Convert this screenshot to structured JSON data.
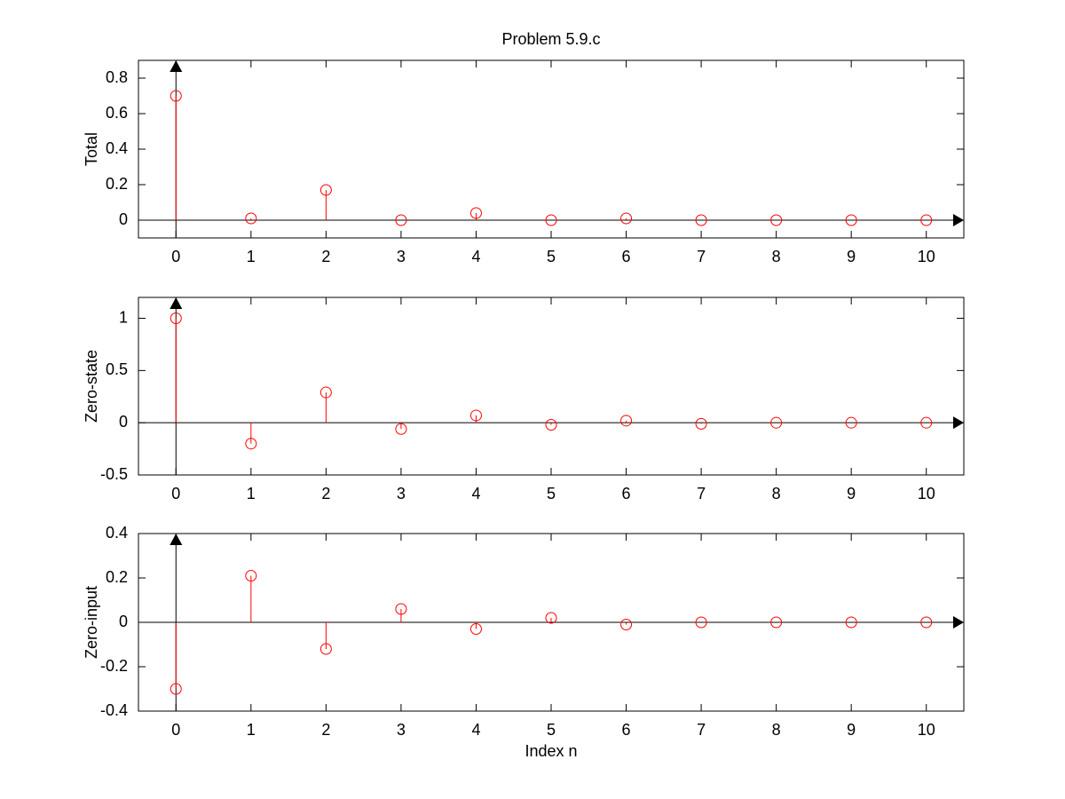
{
  "chart_data": [
    {
      "type": "stem",
      "title": "Problem 5.9.c",
      "ylabel": "Total",
      "color": "#ff0000",
      "x": [
        0,
        1,
        2,
        3,
        4,
        5,
        6,
        7,
        8,
        9,
        10
      ],
      "values": [
        0.7,
        0.01,
        0.17,
        0,
        0.04,
        0,
        0.01,
        0,
        0,
        0,
        0
      ],
      "xlim": [
        -0.5,
        10.5
      ],
      "xticks": [
        0,
        1,
        2,
        3,
        4,
        5,
        6,
        7,
        8,
        9,
        10
      ],
      "ylim": [
        -0.1,
        0.9
      ],
      "yticks": [
        0,
        0.2,
        0.4,
        0.6,
        0.8
      ]
    },
    {
      "type": "stem",
      "ylabel": "Zero-state",
      "color": "#ff0000",
      "x": [
        0,
        1,
        2,
        3,
        4,
        5,
        6,
        7,
        8,
        9,
        10
      ],
      "values": [
        1,
        -0.2,
        0.29,
        -0.06,
        0.07,
        -0.02,
        0.02,
        -0.01,
        0,
        0,
        0
      ],
      "xlim": [
        -0.5,
        10.5
      ],
      "xticks": [
        0,
        1,
        2,
        3,
        4,
        5,
        6,
        7,
        8,
        9,
        10
      ],
      "ylim": [
        -0.5,
        1.2
      ],
      "yticks": [
        -0.5,
        0,
        0.5,
        1
      ]
    },
    {
      "type": "stem",
      "ylabel": "Zero-input",
      "xlabel": "Index n",
      "color": "#ff0000",
      "x": [
        0,
        1,
        2,
        3,
        4,
        5,
        6,
        7,
        8,
        9,
        10
      ],
      "values": [
        -0.3,
        0.21,
        -0.12,
        0.06,
        -0.03,
        0.02,
        -0.01,
        0,
        0,
        0,
        0
      ],
      "xlim": [
        -0.5,
        10.5
      ],
      "xticks": [
        0,
        1,
        2,
        3,
        4,
        5,
        6,
        7,
        8,
        9,
        10
      ],
      "ylim": [
        -0.4,
        0.4
      ],
      "yticks": [
        -0.4,
        -0.2,
        0,
        0.2,
        0.4
      ]
    }
  ]
}
